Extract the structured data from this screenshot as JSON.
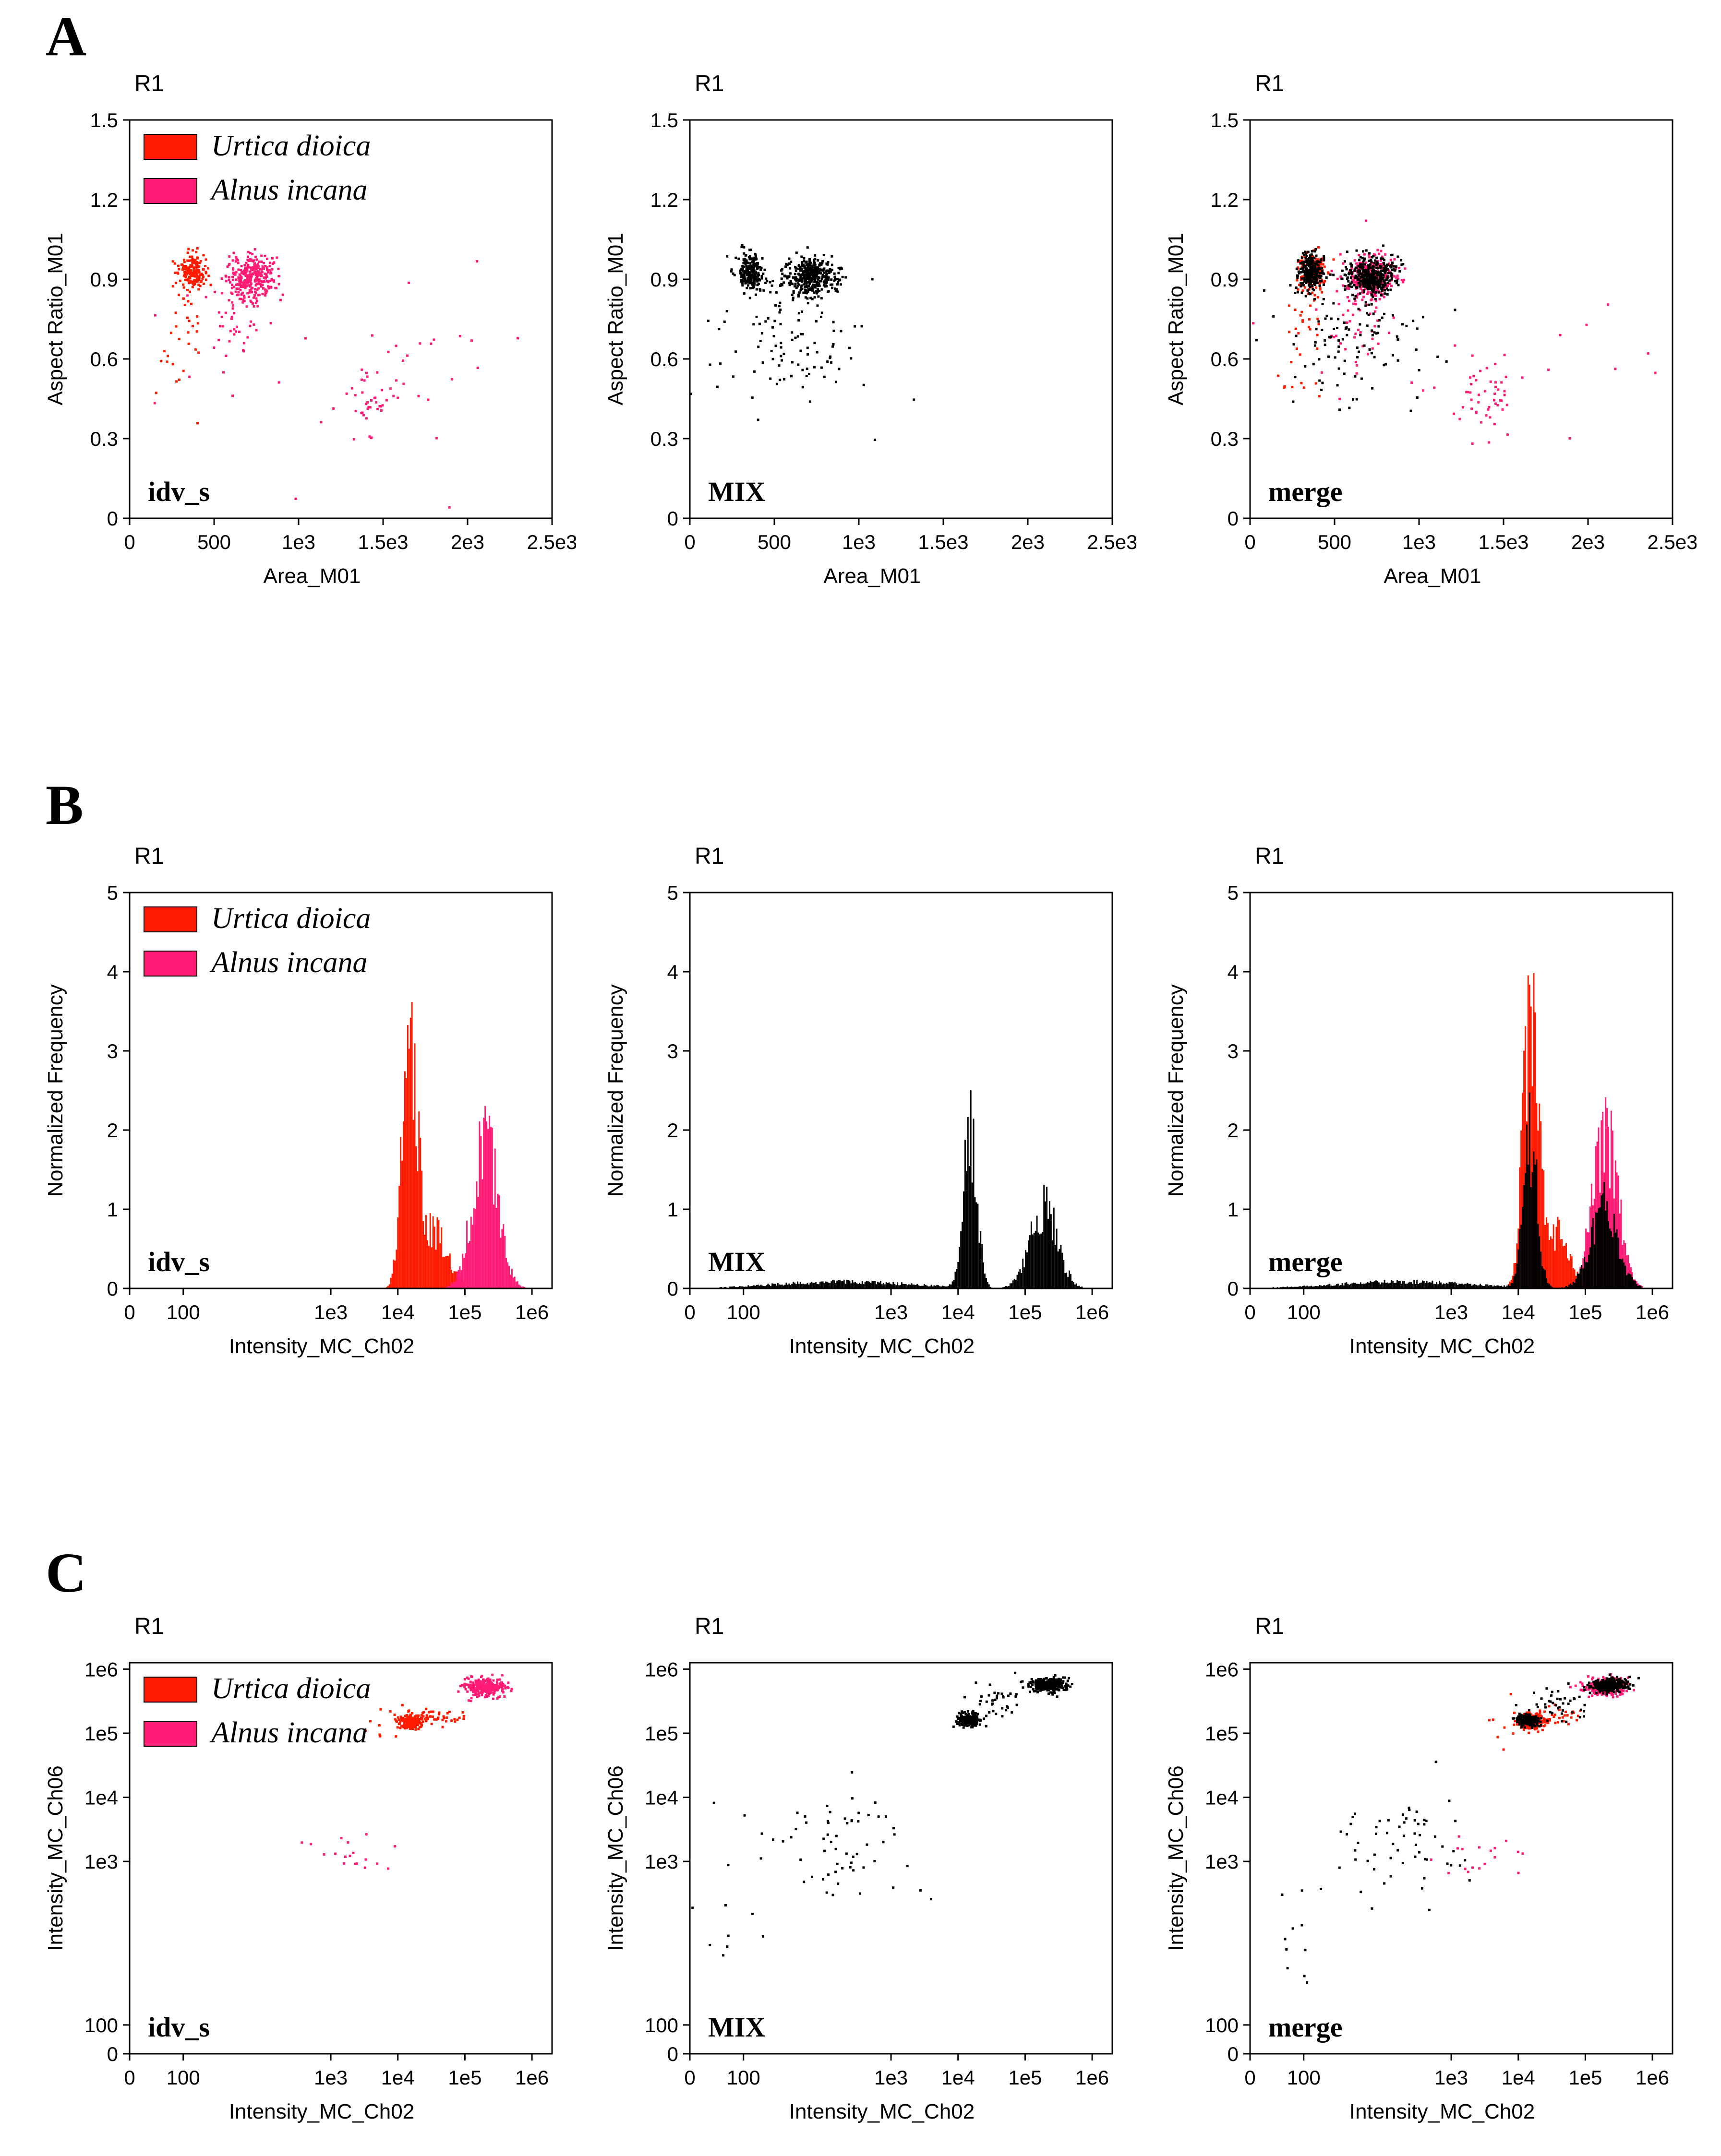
{
  "panels": [
    {
      "letter": "A",
      "plots": [
        {
          "title": "R1",
          "corner_label": "idv_s",
          "legend": true
        },
        {
          "title": "R1",
          "corner_label": "MIX",
          "legend": false
        },
        {
          "title": "R1",
          "corner_label": "merge",
          "legend": false
        }
      ]
    },
    {
      "letter": "B",
      "plots": [
        {
          "title": "R1",
          "corner_label": "idv_s",
          "legend": true
        },
        {
          "title": "R1",
          "corner_label": "MIX",
          "legend": false
        },
        {
          "title": "R1",
          "corner_label": "merge",
          "legend": false
        }
      ]
    },
    {
      "letter": "C",
      "plots": [
        {
          "title": "R1",
          "corner_label": "idv_s",
          "legend": true
        },
        {
          "title": "R1",
          "corner_label": "MIX",
          "legend": false
        },
        {
          "title": "R1",
          "corner_label": "merge",
          "legend": false
        }
      ]
    }
  ],
  "legend": {
    "entries": [
      {
        "name": "Urtica dioica",
        "color": "#ff1a00"
      },
      {
        "name": "Alnus incana",
        "color": "#ff1a75"
      }
    ]
  },
  "colors": {
    "urtica": "#ff1a00",
    "alnus": "#ff1a75",
    "mix": "#000000"
  },
  "chart_data": [
    {
      "panel": "A",
      "type": "scatter",
      "title": "R1",
      "xlabel": "Area_M01",
      "ylabel": "Aspect Ratio_M01",
      "xlim": [
        0,
        2500
      ],
      "ylim": [
        0,
        1.5
      ],
      "x_ticks": [
        0,
        500,
        1000,
        1500,
        2000,
        2500
      ],
      "x_tick_labels": [
        "0",
        "500",
        "1e3",
        "1.5e3",
        "2e3",
        "2.5e3"
      ],
      "y_ticks": [
        0,
        0.3,
        0.6,
        0.9,
        1.2,
        1.5
      ],
      "y_tick_labels": [
        "0",
        "0.3",
        "0.6",
        "0.9",
        "1.2",
        "1.5"
      ],
      "series": [
        {
          "name": "Urtica dioica",
          "clusters": [
            {
              "cx": 370,
              "cy": 0.93,
              "sx": 40,
              "sy": 0.035,
              "n": 180
            },
            {
              "cx": 330,
              "cy": 0.74,
              "sx": 60,
              "sy": 0.09,
              "n": 25
            },
            {
              "cx": 250,
              "cy": 0.55,
              "sx": 60,
              "sy": 0.07,
              "n": 8
            }
          ]
        },
        {
          "name": "Alnus incana",
          "clusters": [
            {
              "cx": 720,
              "cy": 0.91,
              "sx": 70,
              "sy": 0.04,
              "n": 300
            },
            {
              "cx": 650,
              "cy": 0.78,
              "sx": 100,
              "sy": 0.1,
              "n": 50
            },
            {
              "cx": 1420,
              "cy": 0.45,
              "sx": 90,
              "sy": 0.07,
              "n": 45
            },
            {
              "cx": 1200,
              "cy": 0.62,
              "sx": 700,
              "sy": 0.17,
              "n": 25
            }
          ]
        },
        {
          "name": "MIX",
          "clusters": [
            {
              "cx": 360,
              "cy": 0.93,
              "sx": 38,
              "sy": 0.035,
              "n": 240
            },
            {
              "cx": 720,
              "cy": 0.91,
              "sx": 70,
              "sy": 0.035,
              "n": 380
            },
            {
              "cx": 600,
              "cy": 0.68,
              "sx": 230,
              "sy": 0.12,
              "n": 110
            }
          ]
        }
      ]
    },
    {
      "panel": "B",
      "type": "bar",
      "title": "R1",
      "xlabel": "Intensity_MC_Ch02",
      "ylabel": "Normalized Frequency",
      "xscale": "log",
      "xlim_log10": [
        0,
        6.3
      ],
      "ylim": [
        0,
        5
      ],
      "x_tick_positions_log10": [
        0,
        0.8,
        3,
        4,
        5,
        6
      ],
      "x_tick_labels": [
        "0",
        "100",
        "1e3",
        "1e4",
        "1e5",
        "1e6"
      ],
      "y_ticks": [
        0,
        1,
        2,
        3,
        4,
        5
      ],
      "y_tick_labels": [
        "0",
        "1",
        "2",
        "3",
        "4",
        "5"
      ],
      "series": [
        {
          "name": "Urtica dioica",
          "peaks": [
            {
              "center_log10": 4.18,
              "height": 3.9,
              "width": 0.11
            },
            {
              "center_log10": 4.55,
              "height": 0.8,
              "width": 0.2
            }
          ]
        },
        {
          "name": "Alnus incana",
          "peaks": [
            {
              "center_log10": 5.3,
              "height": 2.2,
              "width": 0.19
            }
          ]
        },
        {
          "name": "MIX",
          "peaks": [
            {
              "center_log10": 4.18,
              "height": 2.3,
              "width": 0.1
            },
            {
              "center_log10": 5.28,
              "height": 1.2,
              "width": 0.2
            },
            {
              "center_log10": 2.3,
              "height": 0.1,
              "width": 1.0
            }
          ]
        }
      ]
    },
    {
      "panel": "C",
      "type": "scatter",
      "title": "R1",
      "xlabel": "Intensity_MC_Ch02",
      "ylabel": "Intensity_MC_Ch06",
      "xscale": "log",
      "yscale": "log",
      "xlim_log10": [
        0,
        6.3
      ],
      "ylim_log10": [
        0,
        6.1
      ],
      "x_tick_positions_log10": [
        0,
        0.8,
        3,
        4,
        5,
        6
      ],
      "x_tick_labels": [
        "0",
        "100",
        "1e3",
        "1e4",
        "1e5",
        "1e6"
      ],
      "y_tick_positions_log10": [
        0,
        0.45,
        3,
        4,
        5,
        6
      ],
      "y_tick_labels": [
        "0",
        "100",
        "1e3",
        "1e4",
        "1e5",
        "1e6"
      ],
      "series": [
        {
          "name": "Urtica dioica",
          "clusters": [
            {
              "cx": 4.2,
              "cy": 5.18,
              "sx": 0.1,
              "sy": 0.06,
              "n": 200
            },
            {
              "cx": 4.55,
              "cy": 5.25,
              "sx": 0.22,
              "sy": 0.07,
              "n": 40
            },
            {
              "cx": 3.9,
              "cy": 5.15,
              "sx": 0.25,
              "sy": 0.25,
              "n": 10
            }
          ]
        },
        {
          "name": "Alnus incana",
          "clusters": [
            {
              "cx": 5.3,
              "cy": 5.72,
              "sx": 0.15,
              "sy": 0.07,
              "n": 280
            },
            {
              "cx": 3.4,
              "cy": 3.05,
              "sx": 0.35,
              "sy": 0.2,
              "n": 18
            }
          ]
        },
        {
          "name": "MIX",
          "clusters": [
            {
              "cx": 4.15,
              "cy": 5.2,
              "sx": 0.08,
              "sy": 0.05,
              "n": 220
            },
            {
              "cx": 5.35,
              "cy": 5.75,
              "sx": 0.14,
              "sy": 0.05,
              "n": 320
            },
            {
              "cx": 4.6,
              "cy": 5.45,
              "sx": 0.22,
              "sy": 0.15,
              "n": 40
            },
            {
              "cx": 2.2,
              "cy": 3.3,
              "sx": 0.55,
              "sy": 0.45,
              "n": 60
            },
            {
              "cx": 0.6,
              "cy": 2.2,
              "sx": 0.3,
              "sy": 0.6,
              "n": 10
            }
          ]
        }
      ]
    }
  ]
}
